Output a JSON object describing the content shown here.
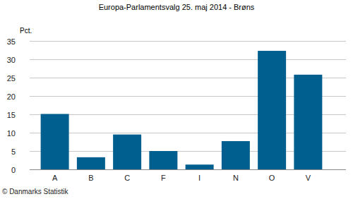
{
  "chart_data": {
    "type": "bar",
    "title": "Europa-Parlamentsvalg 25. maj 2014 - Brøns",
    "y_label": "Pct.",
    "annotations": [
      "© Danmarks Statistik"
    ],
    "categories": [
      "A",
      "B",
      "C",
      "F",
      "I",
      "N",
      "O",
      "V"
    ],
    "values": [
      15.1,
      3.3,
      9.5,
      5.0,
      1.3,
      7.7,
      32.3,
      25.8
    ],
    "color": "#005f8e",
    "ylim": [
      0,
      35
    ],
    "yticks": [
      0,
      5,
      10,
      15,
      20,
      25,
      30,
      35
    ],
    "grid": true
  }
}
